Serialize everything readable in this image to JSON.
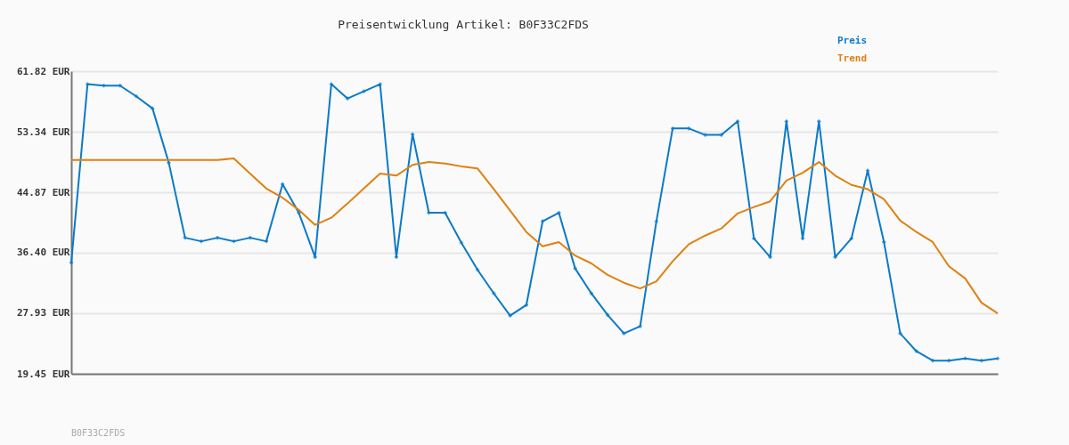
{
  "chart_data": {
    "type": "line",
    "title": "Preisentwicklung Artikel: B0F33C2FDS",
    "categories": [
      null,
      null,
      null,
      null,
      null,
      null,
      null,
      null,
      null,
      null,
      null,
      null,
      null,
      null,
      null,
      null,
      null,
      null,
      null,
      null,
      null,
      null,
      null,
      null,
      null,
      null,
      null,
      null,
      null,
      null,
      null,
      null,
      null,
      null,
      null,
      null,
      null,
      null,
      null,
      null,
      null,
      null,
      null,
      null,
      null,
      null,
      null,
      null,
      null,
      null,
      null,
      null,
      null,
      null,
      null,
      null,
      null,
      null
    ],
    "series": [
      {
        "name": "Preis",
        "color": "#0a7ac8",
        "marker": "cross",
        "values": [
          35.0,
          60.0,
          59.8,
          59.8,
          58.3,
          56.6,
          49.0,
          38.5,
          38.0,
          38.5,
          38.0,
          38.5,
          38.0,
          46.0,
          42.0,
          35.8,
          60.0,
          58.0,
          59.0,
          60.0,
          35.8,
          53.0,
          42.0,
          42.0,
          37.8,
          34.0,
          30.7,
          27.6,
          29.1,
          40.8,
          42.0,
          34.2,
          30.7,
          27.7,
          25.1,
          26.1,
          40.8,
          53.8,
          53.8,
          52.9,
          52.9,
          54.8,
          38.4,
          35.8,
          54.8,
          38.4,
          54.8,
          35.8,
          38.4,
          47.9,
          37.9,
          25.1,
          22.6,
          21.3,
          21.3,
          21.6,
          21.3,
          21.6
        ]
      },
      {
        "name": "Trend",
        "color": "#e08010",
        "marker": "none",
        "values": [
          49.4,
          49.4,
          49.4,
          49.4,
          49.4,
          49.4,
          49.4,
          49.4,
          49.4,
          49.4,
          49.6,
          47.5,
          45.4,
          44.1,
          42.4,
          40.3,
          41.3,
          43.3,
          45.4,
          47.5,
          47.2,
          48.7,
          49.1,
          48.9,
          48.5,
          48.2,
          45.3,
          42.3,
          39.3,
          37.3,
          37.9,
          36.0,
          34.9,
          33.3,
          32.2,
          31.4,
          32.4,
          35.2,
          37.6,
          38.8,
          39.8,
          41.9,
          42.8,
          43.6,
          46.5,
          47.6,
          49.1,
          47.2,
          45.9,
          45.3,
          43.9,
          40.9,
          39.3,
          37.9,
          34.5,
          32.8,
          29.4,
          27.9
        ]
      }
    ],
    "ylim": [
      19.45,
      61.82
    ],
    "yticks": [
      {
        "value": 19.45,
        "label": "19.45 EUR"
      },
      {
        "value": 27.93,
        "label": "27.93 EUR"
      },
      {
        "value": 36.4,
        "label": "36.40 EUR"
      },
      {
        "value": 44.87,
        "label": "44.87 EUR"
      },
      {
        "value": 53.34,
        "label": "53.34 EUR"
      },
      {
        "value": 61.82,
        "label": "61.82 EUR"
      }
    ],
    "grid": "y",
    "legend": "top right",
    "tick_labels": "y",
    "annotations": [
      "B0F33C2FDS"
    ]
  }
}
